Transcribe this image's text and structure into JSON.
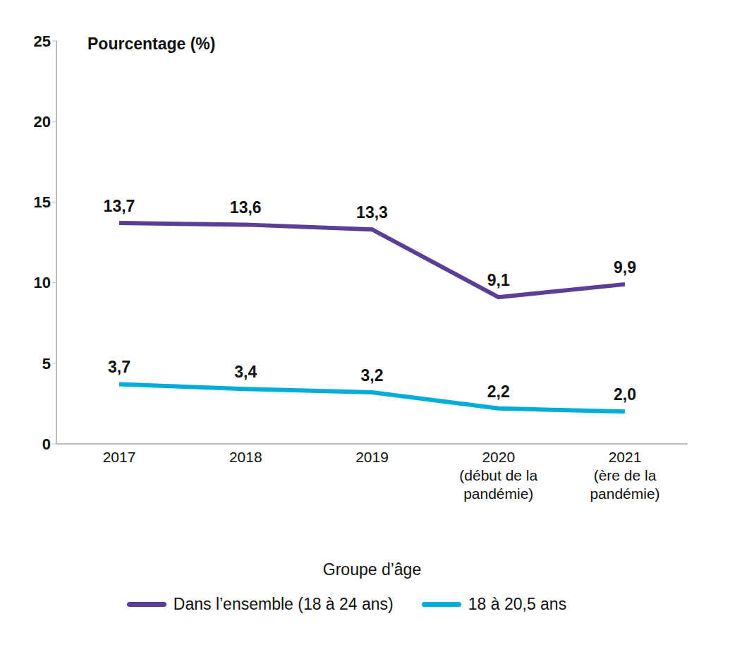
{
  "chart_data": {
    "type": "line",
    "y_label": "Pourcentage (%)",
    "x_label": "Groupe d’âge",
    "categories": [
      "2017",
      "2018",
      "2019",
      "2020\n(début de la\npandémie)",
      "2021\n(ère de la\npandémie)"
    ],
    "series": [
      {
        "name": "Dans l’ensemble (18 à 24 ans)",
        "color": "#5b3f97",
        "values": [
          13.7,
          13.6,
          13.3,
          9.1,
          9.9
        ],
        "value_labels": [
          "13,7",
          "13,6",
          "13,3",
          "9,1",
          "9,9"
        ]
      },
      {
        "name": "18 à 20,5 ans",
        "color": "#00add8",
        "values": [
          3.7,
          3.4,
          3.2,
          2.2,
          2.0
        ],
        "value_labels": [
          "3,7",
          "3,4",
          "3,2",
          "2,2",
          "2,0"
        ]
      }
    ],
    "ylim": [
      0,
      25
    ],
    "yticks": [
      0,
      5,
      10,
      15,
      20,
      25
    ],
    "grid": false,
    "legend": "bottom",
    "data_labels": true
  }
}
